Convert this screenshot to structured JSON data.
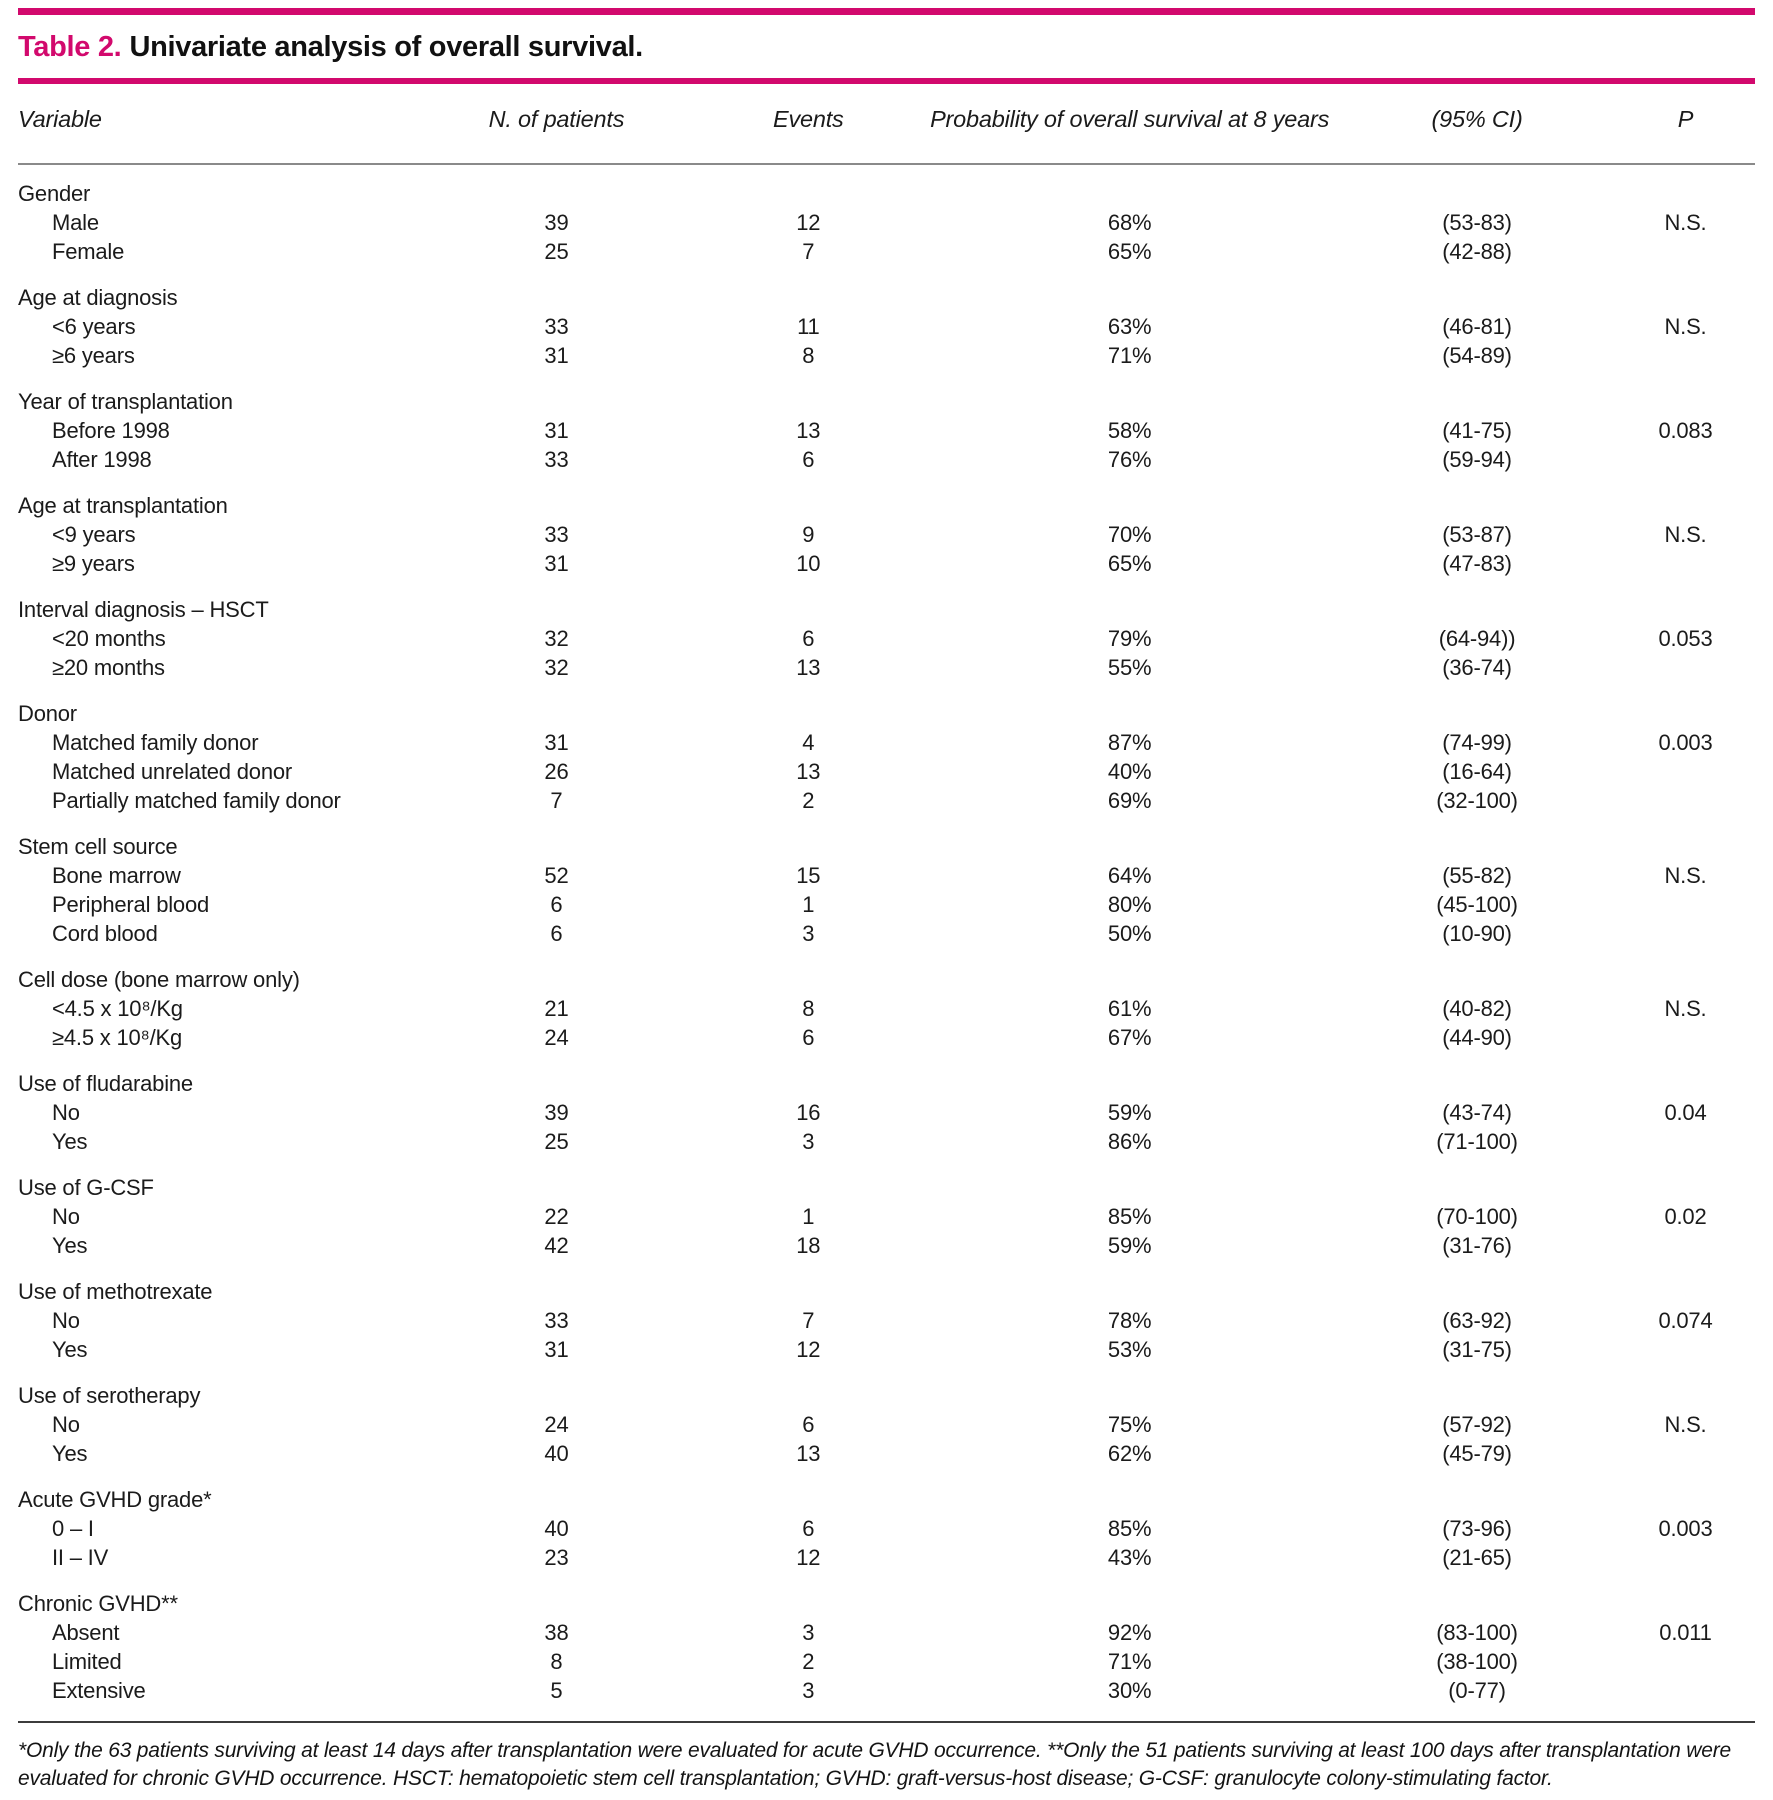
{
  "accent_color": "#d2096d",
  "table": {
    "title_label": "Table 2.",
    "title_text": "Univariate analysis of overall survival.",
    "columns": [
      "Variable",
      "N. of patients",
      "Events",
      "Probability of overall survival at 8 years",
      "(95% CI)",
      "P"
    ],
    "groups": [
      {
        "label": "Gender",
        "rows": [
          {
            "variable": "Male",
            "n": "39",
            "events": "12",
            "probability": "68%",
            "ci": "(53-83)",
            "p": "N.S."
          },
          {
            "variable": "Female",
            "n": "25",
            "events": "7",
            "probability": "65%",
            "ci": "(42-88)",
            "p": ""
          }
        ]
      },
      {
        "label": "Age at diagnosis",
        "rows": [
          {
            "variable": "<6 years",
            "n": "33",
            "events": "11",
            "probability": "63%",
            "ci": "(46-81)",
            "p": "N.S."
          },
          {
            "variable": "≥6 years",
            "n": "31",
            "events": "8",
            "probability": "71%",
            "ci": "(54-89)",
            "p": ""
          }
        ]
      },
      {
        "label": "Year of transplantation",
        "rows": [
          {
            "variable": "Before 1998",
            "n": "31",
            "events": "13",
            "probability": "58%",
            "ci": "(41-75)",
            "p": "0.083"
          },
          {
            "variable": "After 1998",
            "n": "33",
            "events": "6",
            "probability": "76%",
            "ci": "(59-94)",
            "p": ""
          }
        ]
      },
      {
        "label": "Age at transplantation",
        "rows": [
          {
            "variable": "<9 years",
            "n": "33",
            "events": "9",
            "probability": "70%",
            "ci": "(53-87)",
            "p": "N.S."
          },
          {
            "variable": "≥9 years",
            "n": "31",
            "events": "10",
            "probability": "65%",
            "ci": "(47-83)",
            "p": ""
          }
        ]
      },
      {
        "label": "Interval diagnosis – HSCT",
        "rows": [
          {
            "variable": "<20 months",
            "n": "32",
            "events": "6",
            "probability": "79%",
            "ci": "(64-94))",
            "p": "0.053"
          },
          {
            "variable": "≥20 months",
            "n": "32",
            "events": "13",
            "probability": "55%",
            "ci": "(36-74)",
            "p": ""
          }
        ]
      },
      {
        "label": "Donor",
        "rows": [
          {
            "variable": "Matched family donor",
            "n": "31",
            "events": "4",
            "probability": "87%",
            "ci": "(74-99)",
            "p": "0.003"
          },
          {
            "variable": "Matched unrelated donor",
            "n": "26",
            "events": "13",
            "probability": "40%",
            "ci": "(16-64)",
            "p": ""
          },
          {
            "variable": "Partially matched family donor",
            "n": "7",
            "events": "2",
            "probability": "69%",
            "ci": "(32-100)",
            "p": ""
          }
        ]
      },
      {
        "label": "Stem cell source",
        "rows": [
          {
            "variable": "Bone marrow",
            "n": "52",
            "events": "15",
            "probability": "64%",
            "ci": "(55-82)",
            "p": "N.S."
          },
          {
            "variable": "Peripheral blood",
            "n": "6",
            "events": "1",
            "probability": "80%",
            "ci": "(45-100)",
            "p": ""
          },
          {
            "variable": "Cord blood",
            "n": "6",
            "events": "3",
            "probability": "50%",
            "ci": "(10-90)",
            "p": ""
          }
        ]
      },
      {
        "label": "Cell dose (bone marrow only)",
        "rows": [
          {
            "variable": "<4.5 x 10⁸/Kg",
            "n": "21",
            "events": "8",
            "probability": "61%",
            "ci": "(40-82)",
            "p": "N.S."
          },
          {
            "variable": "≥4.5 x 10⁸/Kg",
            "n": "24",
            "events": "6",
            "probability": "67%",
            "ci": "(44-90)",
            "p": ""
          }
        ]
      },
      {
        "label": "Use of fludarabine",
        "rows": [
          {
            "variable": "No",
            "n": "39",
            "events": "16",
            "probability": "59%",
            "ci": "(43-74)",
            "p": "0.04"
          },
          {
            "variable": "Yes",
            "n": "25",
            "events": "3",
            "probability": "86%",
            "ci": "(71-100)",
            "p": ""
          }
        ]
      },
      {
        "label": "Use of G-CSF",
        "rows": [
          {
            "variable": "No",
            "n": "22",
            "events": "1",
            "probability": "85%",
            "ci": "(70-100)",
            "p": "0.02"
          },
          {
            "variable": "Yes",
            "n": "42",
            "events": "18",
            "probability": "59%",
            "ci": "(31-76)",
            "p": ""
          }
        ]
      },
      {
        "label": "Use of methotrexate",
        "rows": [
          {
            "variable": "No",
            "n": "33",
            "events": "7",
            "probability": "78%",
            "ci": "(63-92)",
            "p": "0.074"
          },
          {
            "variable": "Yes",
            "n": "31",
            "events": "12",
            "probability": "53%",
            "ci": "(31-75)",
            "p": ""
          }
        ]
      },
      {
        "label": "Use of serotherapy",
        "rows": [
          {
            "variable": "No",
            "n": "24",
            "events": "6",
            "probability": "75%",
            "ci": "(57-92)",
            "p": "N.S."
          },
          {
            "variable": "Yes",
            "n": "40",
            "events": "13",
            "probability": "62%",
            "ci": "(45-79)",
            "p": ""
          }
        ]
      },
      {
        "label": "Acute GVHD grade*",
        "rows": [
          {
            "variable": "0 – I",
            "n": "40",
            "events": "6",
            "probability": "85%",
            "ci": "(73-96)",
            "p": "0.003"
          },
          {
            "variable": "II – IV",
            "n": "23",
            "events": "12",
            "probability": "43%",
            "ci": "(21-65)",
            "p": ""
          }
        ]
      },
      {
        "label": "Chronic GVHD**",
        "rows": [
          {
            "variable": "Absent",
            "n": "38",
            "events": "3",
            "probability": "92%",
            "ci": "(83-100)",
            "p": "0.011"
          },
          {
            "variable": "Limited",
            "n": "8",
            "events": "2",
            "probability": "71%",
            "ci": "(38-100)",
            "p": ""
          },
          {
            "variable": "Extensive",
            "n": "5",
            "events": "3",
            "probability": "30%",
            "ci": "(0-77)",
            "p": ""
          }
        ]
      }
    ],
    "footnote": "*Only the 63 patients surviving at least 14 days after transplantation were evaluated for acute GVHD occurrence. **Only the 51 patients surviving at least 100 days after transplantation were evaluated for chronic GVHD occurrence. HSCT: hematopoietic stem cell transplantation; GVHD: graft-versus-host disease; G-CSF: granulocyte colony-stimulating factor."
  }
}
